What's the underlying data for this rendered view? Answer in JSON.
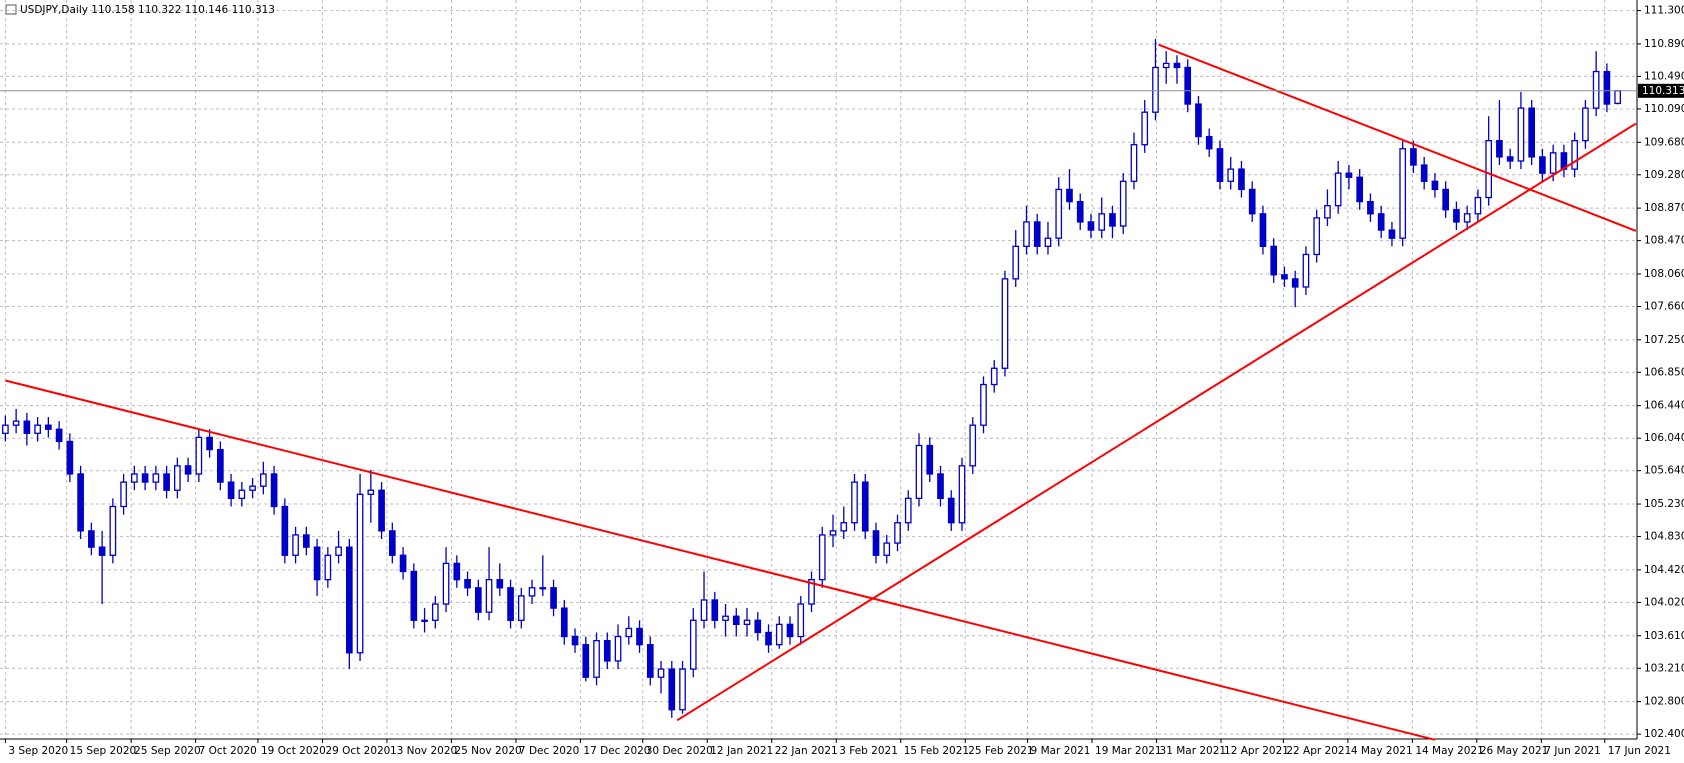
{
  "chart_data": {
    "type": "candlestick",
    "title": "USDJPY,Daily  110.158 110.322 110.146 110.313",
    "color": "#0000c8",
    "grid": true,
    "trend_color": "#ff0000",
    "xlim": [
      -0.5,
      151.8
    ],
    "ylim": [
      102.34,
      111.43
    ],
    "yticks": [
      {
        "value": 111.3,
        "label": "111.300"
      },
      {
        "value": 110.89,
        "label": "110.890"
      },
      {
        "value": 110.49,
        "label": "110.490"
      },
      {
        "value": 110.09,
        "label": "110.090"
      },
      {
        "value": 109.68,
        "label": "109.680"
      },
      {
        "value": 109.28,
        "label": "109.280"
      },
      {
        "value": 108.87,
        "label": "108.870"
      },
      {
        "value": 108.47,
        "label": "108.470"
      },
      {
        "value": 108.06,
        "label": "108.060"
      },
      {
        "value": 107.66,
        "label": "107.660"
      },
      {
        "value": 107.25,
        "label": "107.250"
      },
      {
        "value": 106.85,
        "label": "106.850"
      },
      {
        "value": 106.44,
        "label": "106.440"
      },
      {
        "value": 106.04,
        "label": "106.040"
      },
      {
        "value": 105.64,
        "label": "105.640"
      },
      {
        "value": 105.23,
        "label": "105.230"
      },
      {
        "value": 104.83,
        "label": "104.830"
      },
      {
        "value": 104.42,
        "label": "104.420"
      },
      {
        "value": 104.02,
        "label": "104.020"
      },
      {
        "value": 103.61,
        "label": "103.610"
      },
      {
        "value": 103.21,
        "label": "103.210"
      },
      {
        "value": 102.8,
        "label": "102.800"
      },
      {
        "value": 102.4,
        "label": "102.400"
      }
    ],
    "xticks": [
      {
        "value": 0,
        "label": "3 Sep 2020"
      },
      {
        "value": 5.7,
        "label": "15 Sep 2020"
      },
      {
        "value": 11.7,
        "label": "25 Sep 2020"
      },
      {
        "value": 17.7,
        "label": "7 Oct 2020"
      },
      {
        "value": 23.5,
        "label": "19 Oct 2020"
      },
      {
        "value": 29.5,
        "label": "29 Oct 2020"
      },
      {
        "value": 35.5,
        "label": "13 Nov 2020"
      },
      {
        "value": 41.5,
        "label": "25 Nov 2020"
      },
      {
        "value": 47.5,
        "label": "7 Dec 2020"
      },
      {
        "value": 53.5,
        "label": "17 Dec 2020"
      },
      {
        "value": 59.3,
        "label": "30 Dec 2020"
      },
      {
        "value": 65.3,
        "label": "12 Jan 2021"
      },
      {
        "value": 71.3,
        "label": "22 Jan 2021"
      },
      {
        "value": 77.3,
        "label": "3 Feb 2021"
      },
      {
        "value": 83.3,
        "label": "15 Feb 2021"
      },
      {
        "value": 89.3,
        "label": "25 Feb 2021"
      },
      {
        "value": 95.1,
        "label": "9 Mar 2021"
      },
      {
        "value": 101.1,
        "label": "19 Mar 2021"
      },
      {
        "value": 107.1,
        "label": "31 Mar 2021"
      },
      {
        "value": 113.1,
        "label": "12 Apr 2021"
      },
      {
        "value": 118.9,
        "label": "22 Apr 2021"
      },
      {
        "value": 124.9,
        "label": "4 May 2021"
      },
      {
        "value": 130.9,
        "label": "14 May 2021"
      },
      {
        "value": 136.9,
        "label": "26 May 2021"
      },
      {
        "value": 142.9,
        "label": "7 Jun 2021"
      },
      {
        "value": 148.8,
        "label": "17 Jun 2021"
      }
    ],
    "ohlc": [
      [
        106.1,
        106.32,
        106.0,
        106.2
      ],
      [
        106.2,
        106.4,
        106.1,
        106.25
      ],
      [
        106.25,
        106.35,
        105.95,
        106.1
      ],
      [
        106.1,
        106.3,
        106.0,
        106.2
      ],
      [
        106.2,
        106.3,
        106.05,
        106.15
      ],
      [
        106.15,
        106.25,
        105.9,
        106.0
      ],
      [
        106.0,
        106.1,
        105.5,
        105.6
      ],
      [
        105.6,
        105.7,
        104.8,
        104.9
      ],
      [
        104.9,
        105.0,
        104.6,
        104.7
      ],
      [
        104.7,
        104.9,
        104.0,
        104.6
      ],
      [
        104.6,
        105.3,
        104.5,
        105.2
      ],
      [
        105.2,
        105.6,
        105.1,
        105.5
      ],
      [
        105.5,
        105.7,
        105.4,
        105.6
      ],
      [
        105.6,
        105.7,
        105.4,
        105.5
      ],
      [
        105.5,
        105.7,
        105.4,
        105.6
      ],
      [
        105.6,
        105.7,
        105.3,
        105.4
      ],
      [
        105.4,
        105.8,
        105.3,
        105.7
      ],
      [
        105.7,
        105.8,
        105.5,
        105.6
      ],
      [
        105.6,
        106.15,
        105.5,
        106.05
      ],
      [
        106.05,
        106.15,
        105.8,
        105.9
      ],
      [
        105.9,
        106.0,
        105.4,
        105.5
      ],
      [
        105.5,
        105.6,
        105.2,
        105.3
      ],
      [
        105.3,
        105.5,
        105.2,
        105.4
      ],
      [
        105.4,
        105.55,
        105.3,
        105.45
      ],
      [
        105.45,
        105.75,
        105.35,
        105.6
      ],
      [
        105.6,
        105.7,
        105.1,
        105.2
      ],
      [
        105.2,
        105.3,
        104.5,
        104.6
      ],
      [
        104.6,
        104.95,
        104.5,
        104.85
      ],
      [
        104.85,
        104.95,
        104.6,
        104.7
      ],
      [
        104.7,
        104.8,
        104.1,
        104.3
      ],
      [
        104.3,
        104.7,
        104.2,
        104.6
      ],
      [
        104.6,
        104.9,
        104.5,
        104.7
      ],
      [
        104.7,
        104.8,
        103.2,
        103.4
      ],
      [
        103.4,
        105.6,
        103.3,
        105.35
      ],
      [
        105.35,
        105.65,
        105.0,
        105.4
      ],
      [
        105.4,
        105.5,
        104.8,
        104.9
      ],
      [
        104.9,
        105.0,
        104.5,
        104.6
      ],
      [
        104.6,
        104.7,
        104.3,
        104.4
      ],
      [
        104.4,
        104.5,
        103.7,
        103.8
      ],
      [
        103.8,
        103.95,
        103.65,
        103.8
      ],
      [
        103.8,
        104.1,
        103.7,
        104.0
      ],
      [
        104.0,
        104.7,
        103.9,
        104.5
      ],
      [
        104.5,
        104.6,
        104.2,
        104.3
      ],
      [
        104.3,
        104.4,
        104.1,
        104.2
      ],
      [
        104.2,
        104.3,
        103.8,
        103.9
      ],
      [
        103.9,
        104.7,
        103.8,
        104.3
      ],
      [
        104.3,
        104.5,
        104.1,
        104.2
      ],
      [
        104.2,
        104.3,
        103.7,
        103.8
      ],
      [
        103.8,
        104.2,
        103.7,
        104.1
      ],
      [
        104.1,
        104.3,
        104.0,
        104.2
      ],
      [
        104.2,
        104.6,
        104.1,
        104.2
      ],
      [
        104.2,
        104.3,
        103.85,
        103.95
      ],
      [
        103.95,
        104.05,
        103.5,
        103.6
      ],
      [
        103.6,
        103.7,
        103.4,
        103.5
      ],
      [
        103.5,
        103.6,
        103.05,
        103.1
      ],
      [
        103.1,
        103.65,
        103.0,
        103.55
      ],
      [
        103.55,
        103.65,
        103.2,
        103.3
      ],
      [
        103.3,
        103.75,
        103.2,
        103.6
      ],
      [
        103.6,
        103.85,
        103.5,
        103.7
      ],
      [
        103.7,
        103.8,
        103.4,
        103.5
      ],
      [
        103.5,
        103.6,
        103.0,
        103.1
      ],
      [
        103.1,
        103.3,
        102.9,
        103.2
      ],
      [
        103.2,
        103.3,
        102.6,
        102.7
      ],
      [
        102.7,
        103.3,
        102.65,
        103.2
      ],
      [
        103.2,
        103.95,
        103.1,
        103.8
      ],
      [
        103.8,
        104.4,
        103.7,
        104.05
      ],
      [
        104.05,
        104.15,
        103.7,
        103.8
      ],
      [
        103.8,
        104.0,
        103.6,
        103.85
      ],
      [
        103.85,
        103.95,
        103.6,
        103.75
      ],
      [
        103.75,
        103.95,
        103.6,
        103.8
      ],
      [
        103.8,
        103.9,
        103.55,
        103.65
      ],
      [
        103.65,
        103.75,
        103.4,
        103.5
      ],
      [
        103.5,
        103.85,
        103.45,
        103.75
      ],
      [
        103.75,
        103.85,
        103.5,
        103.6
      ],
      [
        103.6,
        104.1,
        103.5,
        104.0
      ],
      [
        104.0,
        104.4,
        103.9,
        104.3
      ],
      [
        104.3,
        104.95,
        104.2,
        104.85
      ],
      [
        104.85,
        105.1,
        104.7,
        104.9
      ],
      [
        104.9,
        105.2,
        104.8,
        105.0
      ],
      [
        105.0,
        105.6,
        104.9,
        105.5
      ],
      [
        105.5,
        105.6,
        104.8,
        104.9
      ],
      [
        104.9,
        105.0,
        104.5,
        104.6
      ],
      [
        104.6,
        104.85,
        104.5,
        104.75
      ],
      [
        104.75,
        105.1,
        104.65,
        105.0
      ],
      [
        105.0,
        105.4,
        104.9,
        105.3
      ],
      [
        105.3,
        106.1,
        105.2,
        105.95
      ],
      [
        105.95,
        106.05,
        105.5,
        105.6
      ],
      [
        105.6,
        105.7,
        105.2,
        105.3
      ],
      [
        105.3,
        105.4,
        104.9,
        105.0
      ],
      [
        105.0,
        105.8,
        104.9,
        105.7
      ],
      [
        105.7,
        106.3,
        105.6,
        106.2
      ],
      [
        106.2,
        106.8,
        106.1,
        106.7
      ],
      [
        106.7,
        107.0,
        106.6,
        106.9
      ],
      [
        106.9,
        108.1,
        106.8,
        108.0
      ],
      [
        108.0,
        108.6,
        107.9,
        108.4
      ],
      [
        108.4,
        108.9,
        108.3,
        108.7
      ],
      [
        108.7,
        108.8,
        108.3,
        108.4
      ],
      [
        108.4,
        108.7,
        108.3,
        108.5
      ],
      [
        108.5,
        109.25,
        108.4,
        109.1
      ],
      [
        109.1,
        109.35,
        108.85,
        108.95
      ],
      [
        108.95,
        109.05,
        108.6,
        108.7
      ],
      [
        108.7,
        108.8,
        108.5,
        108.6
      ],
      [
        108.6,
        109.0,
        108.5,
        108.8
      ],
      [
        108.8,
        108.9,
        108.5,
        108.65
      ],
      [
        108.65,
        109.3,
        108.55,
        109.2
      ],
      [
        109.2,
        109.8,
        109.1,
        109.65
      ],
      [
        109.65,
        110.2,
        109.55,
        110.05
      ],
      [
        110.05,
        110.95,
        109.95,
        110.6
      ],
      [
        110.6,
        110.8,
        110.4,
        110.65
      ],
      [
        110.65,
        110.75,
        110.4,
        110.6
      ],
      [
        110.6,
        110.7,
        110.05,
        110.15
      ],
      [
        110.15,
        110.25,
        109.65,
        109.75
      ],
      [
        109.75,
        109.85,
        109.5,
        109.6
      ],
      [
        109.6,
        109.7,
        109.1,
        109.2
      ],
      [
        109.2,
        109.5,
        109.1,
        109.35
      ],
      [
        109.35,
        109.45,
        109.0,
        109.1
      ],
      [
        109.1,
        109.2,
        108.7,
        108.8
      ],
      [
        108.8,
        108.9,
        108.3,
        108.4
      ],
      [
        108.4,
        108.5,
        107.95,
        108.05
      ],
      [
        108.05,
        108.15,
        107.9,
        108.0
      ],
      [
        108.0,
        108.1,
        107.65,
        107.9
      ],
      [
        107.9,
        108.4,
        107.8,
        108.3
      ],
      [
        108.3,
        108.85,
        108.2,
        108.75
      ],
      [
        108.75,
        109.1,
        108.65,
        108.9
      ],
      [
        108.9,
        109.45,
        108.8,
        109.3
      ],
      [
        109.3,
        109.4,
        109.1,
        109.25
      ],
      [
        109.25,
        109.35,
        108.85,
        108.95
      ],
      [
        108.95,
        109.05,
        108.7,
        108.8
      ],
      [
        108.8,
        108.9,
        108.5,
        108.6
      ],
      [
        108.6,
        108.7,
        108.4,
        108.5
      ],
      [
        108.5,
        109.7,
        108.4,
        109.6
      ],
      [
        109.6,
        109.7,
        109.3,
        109.4
      ],
      [
        109.4,
        109.5,
        109.1,
        109.2
      ],
      [
        109.2,
        109.3,
        109.0,
        109.1
      ],
      [
        109.1,
        109.2,
        108.75,
        108.85
      ],
      [
        108.85,
        108.95,
        108.6,
        108.7
      ],
      [
        108.7,
        108.9,
        108.6,
        108.8
      ],
      [
        108.8,
        109.1,
        108.7,
        109.0
      ],
      [
        109.0,
        110.0,
        108.9,
        109.7
      ],
      [
        109.7,
        110.2,
        109.4,
        109.5
      ],
      [
        109.5,
        109.6,
        109.35,
        109.45
      ],
      [
        109.45,
        110.3,
        109.35,
        110.1
      ],
      [
        110.1,
        110.2,
        109.4,
        109.5
      ],
      [
        109.5,
        109.6,
        109.2,
        109.3
      ],
      [
        109.3,
        109.65,
        109.2,
        109.55
      ],
      [
        109.55,
        109.65,
        109.25,
        109.35
      ],
      [
        109.35,
        109.8,
        109.25,
        109.7
      ],
      [
        109.7,
        110.2,
        109.6,
        110.1
      ],
      [
        110.1,
        110.8,
        110.0,
        110.55
      ],
      [
        110.55,
        110.65,
        110.05,
        110.15
      ],
      [
        110.158,
        110.322,
        110.146,
        110.313
      ]
    ],
    "trendlines": [
      {
        "from": [
          0,
          106.75
        ],
        "to": [
          133,
          102.33
        ]
      },
      {
        "from": [
          62.5,
          102.57
        ],
        "to": [
          151.7,
          109.91
        ]
      },
      {
        "from": [
          107.3,
          110.88
        ],
        "to": [
          151.7,
          108.59
        ]
      }
    ]
  }
}
